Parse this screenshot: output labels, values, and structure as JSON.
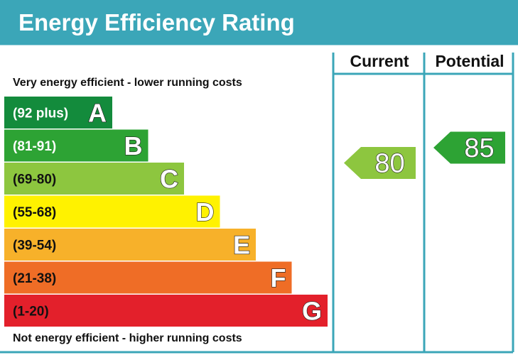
{
  "header": {
    "title": "Energy Efficiency Rating"
  },
  "columns": {
    "current_label": "Current",
    "potential_label": "Potential"
  },
  "captions": {
    "top": "Very energy efficient - lower running costs",
    "bottom": "Not energy efficient - higher running costs"
  },
  "colors": {
    "header_bg": "#3ba6b8",
    "frame": "#3ba6b8"
  },
  "chart_data": {
    "type": "bar",
    "title": "Energy Efficiency Rating",
    "bands": [
      {
        "letter": "A",
        "range": "(92 plus)",
        "color": "#138b3c",
        "text_color": "#ffffff"
      },
      {
        "letter": "B",
        "range": "(81-91)",
        "color": "#2da334",
        "text_color": "#ffffff"
      },
      {
        "letter": "C",
        "range": "(69-80)",
        "color": "#8dc63f",
        "text_color": "#111111"
      },
      {
        "letter": "D",
        "range": "(55-68)",
        "color": "#fff200",
        "text_color": "#111111"
      },
      {
        "letter": "E",
        "range": "(39-54)",
        "color": "#f7b12a",
        "text_color": "#111111"
      },
      {
        "letter": "F",
        "range": "(21-38)",
        "color": "#ef6d26",
        "text_color": "#111111"
      },
      {
        "letter": "G",
        "range": "(1-20)",
        "color": "#e3202b",
        "text_color": "#111111"
      }
    ],
    "current": {
      "value": 80,
      "band": "C",
      "color": "#8dc63f"
    },
    "potential": {
      "value": 85,
      "band": "B",
      "color": "#2da334"
    }
  }
}
